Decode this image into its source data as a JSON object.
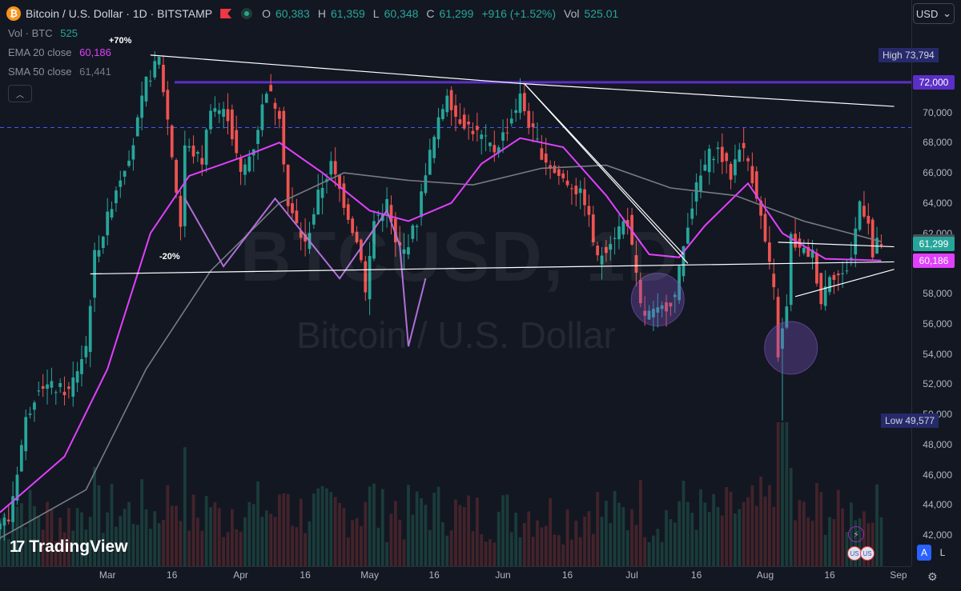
{
  "header": {
    "coin_glyph": "₿",
    "title": "Bitcoin / U.S. Dollar · 1D · BITSTAMP",
    "ohlc": [
      {
        "label": "O",
        "value": "60,383"
      },
      {
        "label": "H",
        "value": "61,359"
      },
      {
        "label": "L",
        "value": "60,348"
      },
      {
        "label": "C",
        "value": "61,299"
      }
    ],
    "change": "+916 (+1.52%)",
    "vol_label": "Vol",
    "vol_value": "525.01"
  },
  "indicators": {
    "vol": {
      "name": "Vol · BTC",
      "value": "525",
      "color": "#26a69a"
    },
    "ema": {
      "name": "EMA 20 close",
      "value": "60,186",
      "color": "#e040fb"
    },
    "sma": {
      "name": "SMA 50 close",
      "value": "61,441",
      "color": "#787b86"
    }
  },
  "collapse_glyph": "︿",
  "currency": {
    "label": "USD",
    "chevron": "⌄"
  },
  "annotations": {
    "pump": "+70%",
    "drop": "-20%"
  },
  "watermark": {
    "symbol": "BTCUSD, 1D",
    "name": "Bitcoin / U.S. Dollar"
  },
  "branding": {
    "logo_mark": "17",
    "text": "TradingView"
  },
  "price_axis": {
    "ticks": [
      "72,000",
      "70,000",
      "68,000",
      "66,000",
      "64,000",
      "62,000",
      "60,000",
      "58,000",
      "56,000",
      "54,000",
      "52,000",
      "50,000",
      "48,000",
      "46,000",
      "44,000",
      "42,000"
    ],
    "high": {
      "label": "High",
      "value": "73,794"
    },
    "low": {
      "label": "Low",
      "value": "49,577"
    },
    "badges": [
      {
        "value": "72,000",
        "bg": "#5b2fc7",
        "fg": "#ffffff"
      },
      {
        "value": "61,441",
        "bg": "#4a4d57",
        "fg": "#ffffff"
      },
      {
        "value": "61,299",
        "bg": "#26a69a",
        "fg": "#ffffff"
      },
      {
        "value": "60,186",
        "bg": "#e040fb",
        "fg": "#ffffff"
      }
    ]
  },
  "time_axis": [
    "Mar",
    "16",
    "Apr",
    "16",
    "May",
    "16",
    "Jun",
    "16",
    "Jul",
    "16",
    "Aug",
    "16",
    "Sep"
  ],
  "bottom_controls": {
    "bolt": "⚡",
    "events": [
      "US",
      "US"
    ],
    "auto": "A",
    "log": "L",
    "settings": "⚙"
  },
  "chart_data": {
    "type": "candlestick",
    "title": "Bitcoin / U.S. Dollar · 1D · BITSTAMP",
    "ylim": [
      41000,
      76000
    ],
    "x_start": "2024-02-05",
    "x_end": "2024-09-04",
    "horizontal_levels": [
      72000,
      69000
    ],
    "colors": {
      "up": "#26a69a",
      "down": "#ef5350",
      "ema": "#e040fb",
      "sma": "#787b86",
      "resistance": "#5b2fc7"
    },
    "price_path": [
      [
        "2024-02-05",
        42800
      ],
      [
        "2024-02-08",
        43000
      ],
      [
        "2024-02-12",
        49600
      ],
      [
        "2024-02-15",
        52000
      ],
      [
        "2024-02-18",
        51800
      ],
      [
        "2024-02-22",
        51500
      ],
      [
        "2024-02-26",
        54500
      ],
      [
        "2024-02-28",
        60500
      ],
      [
        "2024-03-01",
        62000
      ],
      [
        "2024-03-04",
        65000
      ],
      [
        "2024-03-08",
        68000
      ],
      [
        "2024-03-11",
        72000
      ],
      [
        "2024-03-14",
        73500
      ],
      [
        "2024-03-16",
        69500
      ],
      [
        "2024-03-19",
        62500
      ],
      [
        "2024-03-20",
        67800
      ],
      [
        "2024-03-24",
        66800
      ],
      [
        "2024-03-26",
        70500
      ],
      [
        "2024-03-30",
        69800
      ],
      [
        "2024-04-02",
        65800
      ],
      [
        "2024-04-05",
        67800
      ],
      [
        "2024-04-08",
        71600
      ],
      [
        "2024-04-11",
        70000
      ],
      [
        "2024-04-13",
        63800
      ],
      [
        "2024-04-17",
        61200
      ],
      [
        "2024-04-20",
        64500
      ],
      [
        "2024-04-23",
        66500
      ],
      [
        "2024-04-27",
        63200
      ],
      [
        "2024-04-30",
        60500
      ],
      [
        "2024-05-01",
        58000
      ],
      [
        "2024-05-03",
        62800
      ],
      [
        "2024-05-06",
        64000
      ],
      [
        "2024-05-08",
        61200
      ],
      [
        "2024-05-10",
        60800
      ],
      [
        "2024-05-13",
        62800
      ],
      [
        "2024-05-15",
        66200
      ],
      [
        "2024-05-20",
        71400
      ],
      [
        "2024-05-22",
        69800
      ],
      [
        "2024-05-27",
        68600
      ],
      [
        "2024-05-31",
        67500
      ],
      [
        "2024-06-03",
        69000
      ],
      [
        "2024-06-06",
        71000
      ],
      [
        "2024-06-08",
        69300
      ],
      [
        "2024-06-11",
        67300
      ],
      [
        "2024-06-14",
        66000
      ],
      [
        "2024-06-18",
        65200
      ],
      [
        "2024-06-21",
        64200
      ],
      [
        "2024-06-24",
        60200
      ],
      [
        "2024-06-27",
        61600
      ],
      [
        "2024-06-30",
        62700
      ],
      [
        "2024-07-01",
        62800
      ],
      [
        "2024-07-04",
        57100
      ],
      [
        "2024-07-05",
        56600
      ],
      [
        "2024-07-08",
        56700
      ],
      [
        "2024-07-12",
        57800
      ],
      [
        "2024-07-15",
        62800
      ],
      [
        "2024-07-17",
        65000
      ],
      [
        "2024-07-20",
        67200
      ],
      [
        "2024-07-22",
        67500
      ],
      [
        "2024-07-25",
        65800
      ],
      [
        "2024-07-27",
        67900
      ],
      [
        "2024-07-29",
        66800
      ],
      [
        "2024-07-31",
        64600
      ],
      [
        "2024-08-02",
        61400
      ],
      [
        "2024-08-04",
        58100
      ],
      [
        "2024-08-05",
        54000
      ],
      [
        "2024-08-07",
        57000
      ],
      [
        "2024-08-08",
        61700
      ],
      [
        "2024-08-10",
        60800
      ],
      [
        "2024-08-13",
        60600
      ],
      [
        "2024-08-15",
        57500
      ],
      [
        "2024-08-17",
        59400
      ],
      [
        "2024-08-20",
        59100
      ],
      [
        "2024-08-22",
        60400
      ],
      [
        "2024-08-24",
        64100
      ],
      [
        "2024-08-26",
        62900
      ],
      [
        "2024-08-27",
        60383
      ],
      [
        "2024-08-28",
        61299
      ]
    ],
    "ema20": [
      [
        "2024-02-05",
        43500
      ],
      [
        "2024-02-20",
        47200
      ],
      [
        "2024-03-01",
        53000
      ],
      [
        "2024-03-11",
        62000
      ],
      [
        "2024-03-20",
        65800
      ],
      [
        "2024-04-01",
        67000
      ],
      [
        "2024-04-10",
        68000
      ],
      [
        "2024-04-20",
        66000
      ],
      [
        "2024-05-01",
        63500
      ],
      [
        "2024-05-10",
        62800
      ],
      [
        "2024-05-20",
        64000
      ],
      [
        "2024-05-27",
        66600
      ],
      [
        "2024-06-05",
        68300
      ],
      [
        "2024-06-15",
        67700
      ],
      [
        "2024-06-25",
        64500
      ],
      [
        "2024-07-05",
        60600
      ],
      [
        "2024-07-12",
        60400
      ],
      [
        "2024-07-18",
        62500
      ],
      [
        "2024-07-28",
        65300
      ],
      [
        "2024-08-05",
        62000
      ],
      [
        "2024-08-15",
        60300
      ],
      [
        "2024-08-28",
        60186
      ]
    ],
    "sma50": [
      [
        "2024-02-05",
        41800
      ],
      [
        "2024-02-25",
        45000
      ],
      [
        "2024-03-10",
        53000
      ],
      [
        "2024-03-25",
        59500
      ],
      [
        "2024-04-10",
        64000
      ],
      [
        "2024-04-25",
        66000
      ],
      [
        "2024-05-10",
        65500
      ],
      [
        "2024-05-25",
        65200
      ],
      [
        "2024-06-10",
        66300
      ],
      [
        "2024-06-25",
        66500
      ],
      [
        "2024-07-10",
        65000
      ],
      [
        "2024-07-25",
        64500
      ],
      [
        "2024-08-10",
        62800
      ],
      [
        "2024-08-28",
        61441
      ]
    ],
    "trendlines": [
      {
        "from": [
          "2024-03-11",
          73800
        ],
        "to": [
          "2024-06-06",
          71900
        ]
      },
      {
        "from": [
          "2024-06-06",
          71900
        ],
        "to": [
          "2024-08-31",
          70400
        ]
      },
      {
        "from": [
          "2024-02-26",
          59300
        ],
        "to": [
          "2024-08-31",
          60100
        ]
      },
      {
        "from": [
          "2024-06-06",
          71900
        ],
        "to": [
          "2024-07-13",
          60600
        ]
      },
      {
        "from": [
          "2024-06-06",
          71900
        ],
        "to": [
          "2024-07-14",
          60000
        ]
      },
      {
        "from": [
          "2024-08-04",
          61400
        ],
        "to": [
          "2024-08-31",
          61100
        ]
      },
      {
        "from": [
          "2024-08-08",
          57800
        ],
        "to": [
          "2024-08-31",
          59600
        ]
      }
    ],
    "pattern_zigzag": [
      [
        "2024-03-19",
        64300
      ],
      [
        "2024-03-28",
        59800
      ],
      [
        "2024-04-09",
        64300
      ],
      [
        "2024-04-24",
        59000
      ],
      [
        "2024-05-05",
        63500
      ],
      [
        "2024-05-08",
        61200
      ],
      [
        "2024-05-10",
        54500
      ],
      [
        "2024-05-14",
        59000
      ]
    ],
    "highlight_circles": [
      {
        "at": [
          "2024-07-07",
          57600
        ]
      },
      {
        "at": [
          "2024-08-07",
          54400
        ]
      }
    ],
    "volume_note": "volume bars shown at bottom"
  }
}
